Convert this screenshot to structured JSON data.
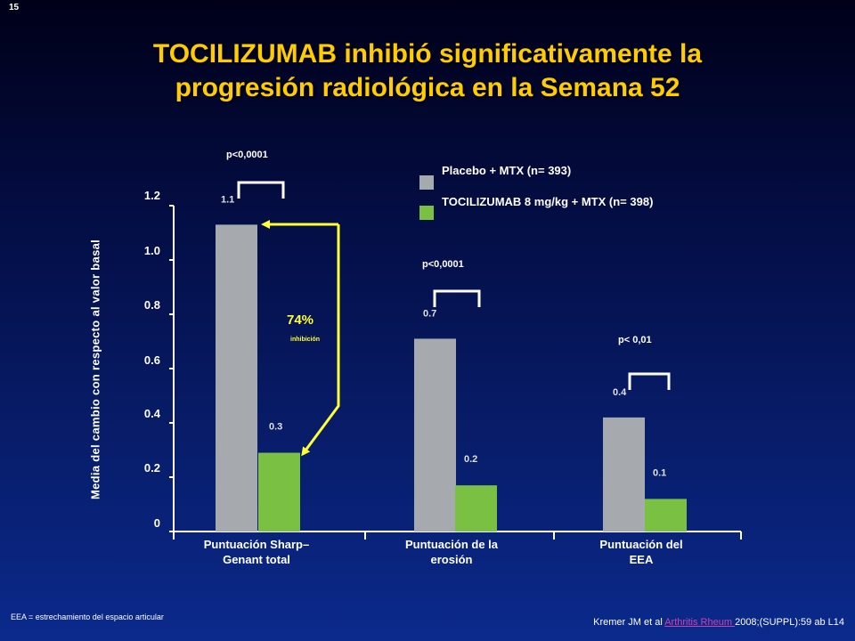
{
  "slide_number": "15",
  "title_lines": [
    "TOCILIZUMAB inhibió significativamente la",
    "progresión radiológica en la Semana 52"
  ],
  "legend": {
    "placebo": "Placebo + MTX (n= 393)",
    "toci": "TOCILIZUMAB 8 mg/kg + MTX (n= 398)"
  },
  "annotation": {
    "percent": "74%",
    "sub": "inhibición"
  },
  "footnote": "EEA = estrechamiento del espacio articular",
  "citation": {
    "before": "Kremer JM et al ",
    "journal": "Arthritis Rheum ",
    "after": "2008;(SUPPL):59  ab L14"
  },
  "colors": {
    "placebo": "#a6a9ad",
    "toci": "#7ac143",
    "accent": "#ffcc00",
    "arrow": "#ffff33"
  },
  "chart_data": {
    "type": "bar",
    "ylabel": "Media del cambio con respecto al valor basal",
    "ylim": [
      0,
      1.2
    ],
    "yticks": [
      "0",
      "0.2",
      "0.4",
      "0.6",
      "0.8",
      "1.0",
      "1.2"
    ],
    "categories": [
      [
        "Puntuación Sharp–",
        "Genant total"
      ],
      [
        "Puntuación de la",
        "erosión"
      ],
      [
        "Puntuación del",
        "EEA"
      ]
    ],
    "series": [
      {
        "name": "Placebo + MTX (n= 393)",
        "values": [
          1.13,
          0.71,
          0.42
        ],
        "labels": [
          "1.1",
          "0.7",
          "0.4"
        ]
      },
      {
        "name": "TOCILIZUMAB 8 mg/kg + MTX (n= 398)",
        "values": [
          0.29,
          0.17,
          0.12
        ],
        "labels": [
          "0.3",
          "0.2",
          "0.1"
        ]
      }
    ],
    "pvalues": [
      "p<0,0001",
      "p<0,0001",
      "p< 0,01"
    ]
  }
}
